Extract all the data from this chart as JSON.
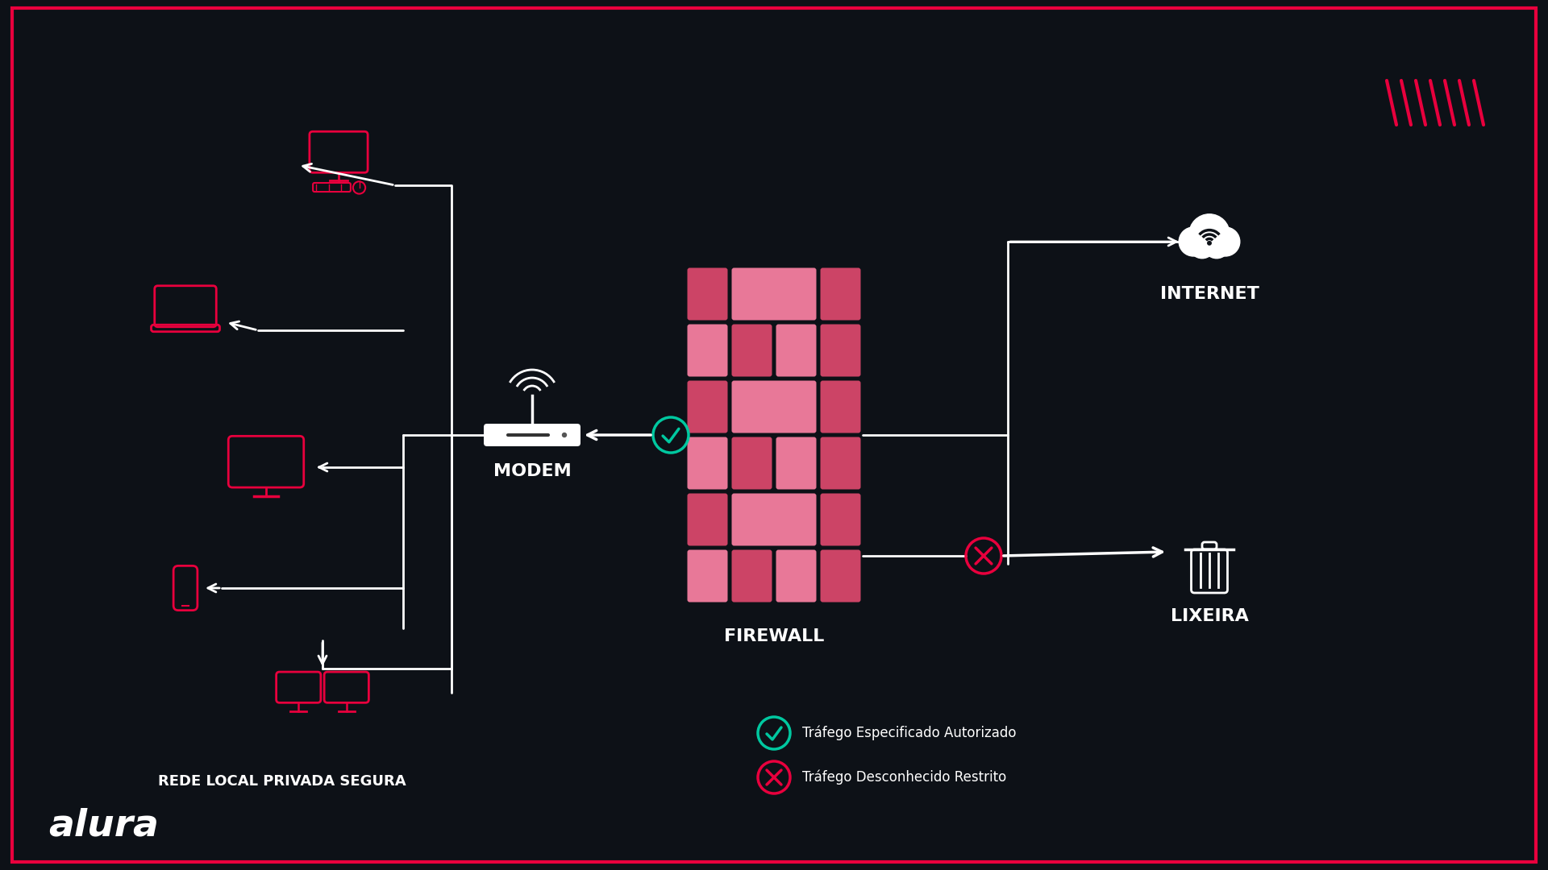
{
  "bg_color": "#0d1117",
  "border_color": "#e8003d",
  "device_color": "#e8003d",
  "modem_color": "#ffffff",
  "firewall_colors": [
    "#e8608a",
    "#e05060",
    "#cc4466",
    "#e8608a",
    "#e05060",
    "#cc4466",
    "#e8608a",
    "#e05060",
    "#cc4466",
    "#e8608a",
    "#e05060",
    "#cc4466"
  ],
  "arrow_color": "#ffffff",
  "check_color": "#00c8a0",
  "cross_color": "#e8003d",
  "cloud_color": "#ffffff",
  "trash_color": "#ffffff",
  "text_color": "#ffffff",
  "label_color": "#ffffff",
  "title": "REDE LOCAL PRIVADA SEGURA",
  "modem_label": "MODEM",
  "firewall_label": "FIREWALL",
  "internet_label": "INTERNET",
  "lixeira_label": "LIXEIRA",
  "legend_check": "Tráfego Especificado Autorizado",
  "legend_cross": "Tráfego Desconhecido Restrito",
  "alura_text": "alura",
  "hatches_color": "#e8003d"
}
